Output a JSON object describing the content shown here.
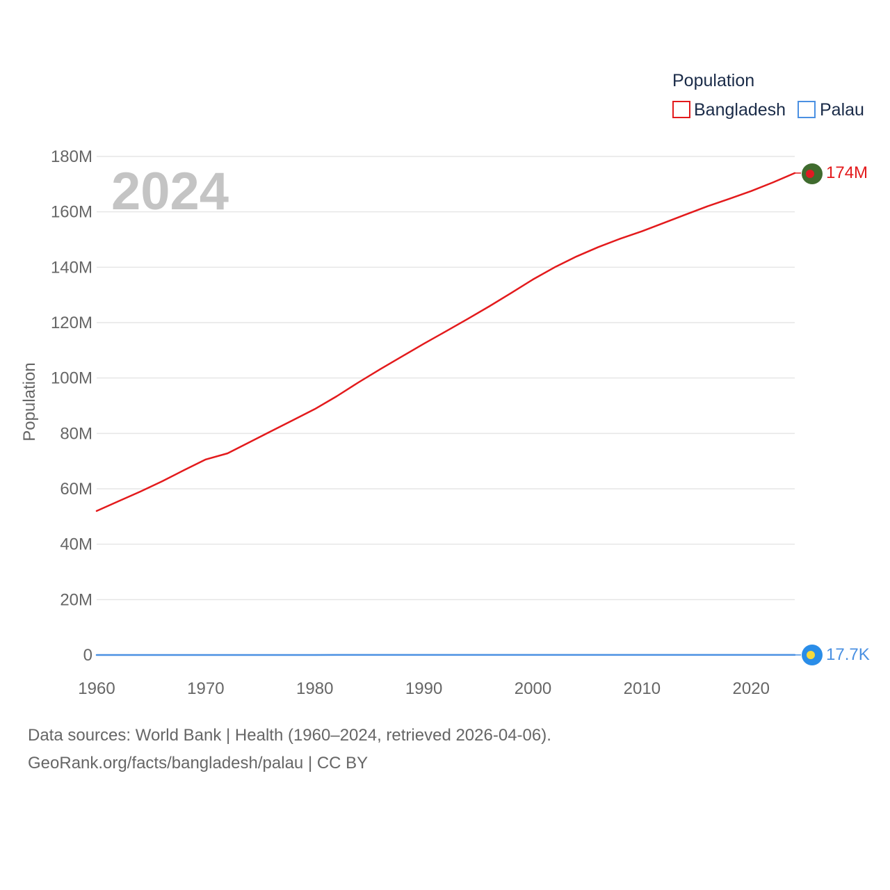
{
  "chart_data": {
    "type": "line",
    "title": "",
    "year_label": "2024",
    "xlabel": "",
    "ylabel": "Population",
    "xlim": [
      1960,
      2024
    ],
    "ylim": [
      0,
      180000000
    ],
    "x_ticks": [
      1960,
      1970,
      1980,
      1990,
      2000,
      2010,
      2020
    ],
    "x_tick_labels": [
      "1960",
      "1970",
      "1980",
      "1990",
      "2000",
      "2010",
      "2020"
    ],
    "y_ticks": [
      0,
      20000000,
      40000000,
      60000000,
      80000000,
      100000000,
      120000000,
      140000000,
      160000000,
      180000000
    ],
    "y_tick_labels": [
      "0",
      "20M",
      "40M",
      "60M",
      "80M",
      "100M",
      "120M",
      "140M",
      "160M",
      "180M"
    ],
    "grid": true,
    "legend": {
      "title": "Population",
      "placement": "top-right"
    },
    "x": [
      1960,
      1962,
      1964,
      1966,
      1968,
      1970,
      1972,
      1974,
      1976,
      1978,
      1980,
      1982,
      1984,
      1986,
      1988,
      1990,
      1992,
      1994,
      1996,
      1998,
      2000,
      2002,
      2004,
      2006,
      2008,
      2010,
      2012,
      2014,
      2016,
      2018,
      2020,
      2022,
      2024
    ],
    "series": [
      {
        "name": "Bangladesh",
        "color": "#e31a1c",
        "end_label": "174M",
        "values": [
          52000000,
          55500000,
          59000000,
          62700000,
          66700000,
          70600000,
          72800000,
          76800000,
          80800000,
          84800000,
          88800000,
          93400000,
          98400000,
          103200000,
          107800000,
          112400000,
          116800000,
          121300000,
          125900000,
          130700000,
          135600000,
          140000000,
          143900000,
          147300000,
          150300000,
          153000000,
          156000000,
          159000000,
          162000000,
          164700000,
          167500000,
          170600000,
          174000000
        ]
      },
      {
        "name": "Palau",
        "color": "#4a90e2",
        "end_label": "17.7K",
        "values": [
          9600,
          10100,
          10600,
          11000,
          11400,
          11600,
          12000,
          12200,
          12300,
          12400,
          12300,
          12800,
          13400,
          14100,
          14700,
          15100,
          15800,
          16500,
          17200,
          18200,
          19200,
          19400,
          19300,
          19000,
          18600,
          18500,
          18100,
          17900,
          17800,
          17900,
          18000,
          17800,
          17700
        ]
      }
    ]
  },
  "colors": {
    "bangladesh": "#e31a1c",
    "palau": "#4a90e2",
    "grid": "#e6e6e6",
    "flag_bd_green": "#3f6b2e",
    "flag_bd_red": "#e01a22",
    "flag_pw_blue": "#2a8de8",
    "flag_pw_yellow": "#f6d93c"
  },
  "icons": {
    "bangladesh_marker": "bangladesh-flag-icon",
    "palau_marker": "palau-flag-icon"
  },
  "footer": {
    "sources": "Data sources: World Bank | Health (1960–2024, retrieved 2026-04-06).",
    "attribution": "GeoRank.org/facts/bangladesh/palau | CC BY"
  }
}
